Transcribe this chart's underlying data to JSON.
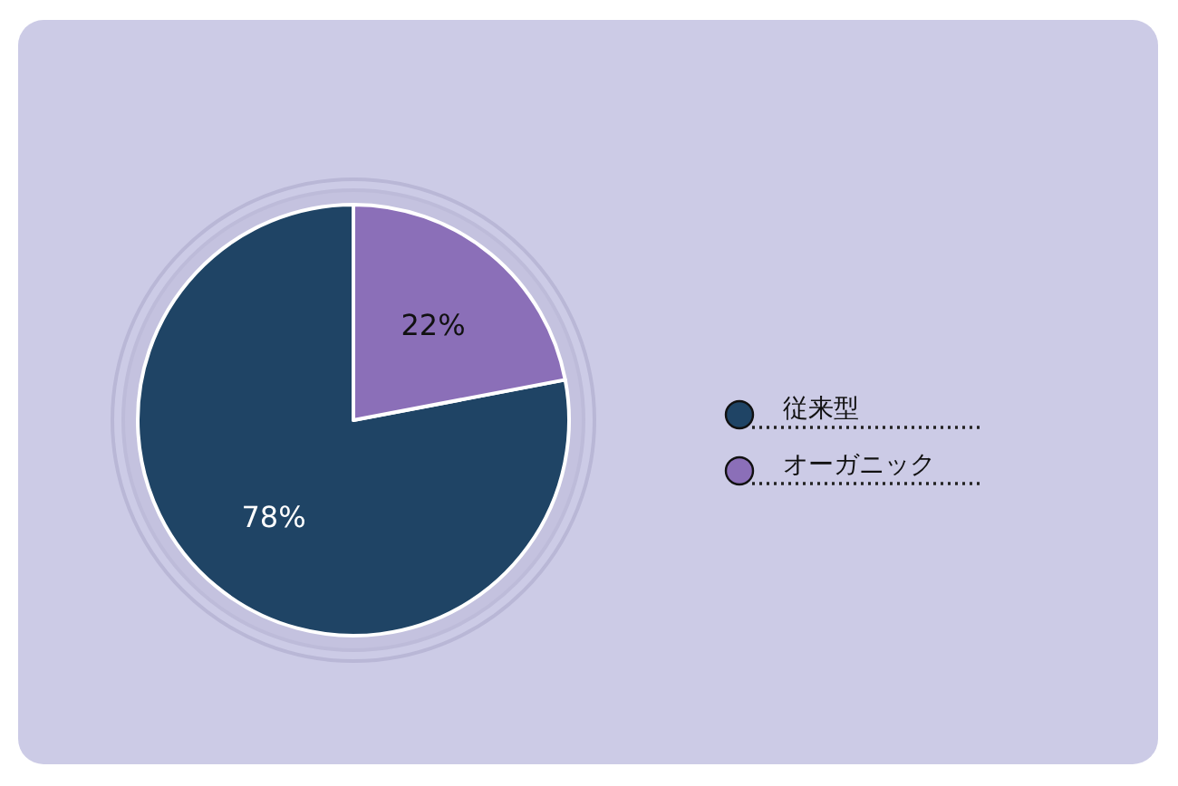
{
  "chart_data": {
    "type": "pie",
    "categories": [
      "従来型",
      "オーガニック"
    ],
    "values": [
      78,
      22
    ],
    "colors": [
      "#1f4465",
      "#8b6fb8"
    ],
    "value_labels": [
      "78%",
      "22%"
    ],
    "legend": "right"
  }
}
